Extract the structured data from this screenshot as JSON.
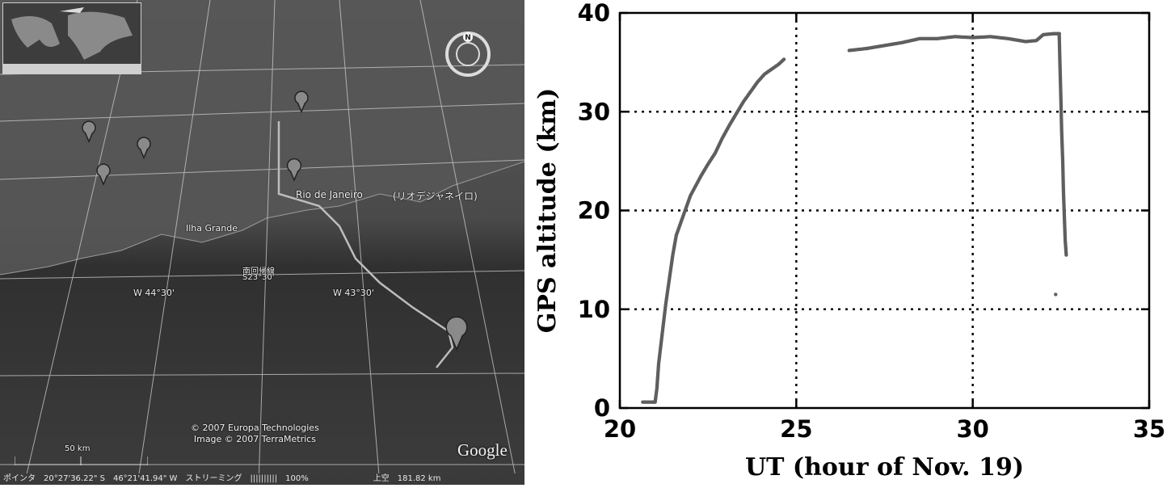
{
  "map": {
    "place_label": "Rio de Janeiro",
    "place_label_jp": "(リオデジャネイロ)",
    "island_label": "Ilha Grande",
    "tropic_label": "南回帰線",
    "lat_label": "S23°30'",
    "lon_label_1": "W 44°30'",
    "lon_label_2": "W 43°30'",
    "copyright_1": "© 2007 Europa Technologies",
    "copyright_2": "Image © 2007 TerraMetrics",
    "scale_label": "50 km",
    "logo_text": "Google",
    "compass_north": "N",
    "colors": {
      "grid": "#d0d0d0",
      "track": "#bdbdbd",
      "pin": "#8a8a8a",
      "ocean": "#2a2a2a",
      "land": "#4a4a4a"
    },
    "status_bar": {
      "mode": "ポインタ",
      "lat": "20°27'36.22\" S",
      "lon": "46°21'41.94\" W",
      "streaming_label": "ストリーミング",
      "streaming_meter": "||||||||||",
      "streaming_pct": "100%",
      "view_label": "上空",
      "altitude": "181.82 km"
    }
  },
  "chart_data": {
    "type": "scatter",
    "title": "",
    "xlabel": "UT (hour of Nov. 19)",
    "ylabel": "GPS altitude (km)",
    "xlim": [
      20,
      35
    ],
    "ylim": [
      0,
      40
    ],
    "xticks": [
      "20",
      "25",
      "30",
      "35"
    ],
    "yticks": [
      "0",
      "10",
      "20",
      "30",
      "40"
    ],
    "grid": true,
    "series_color": "#5f5f5f",
    "series": [
      {
        "x": [
          20.65,
          20.9,
          21.0,
          21.05,
          21.1,
          21.2,
          21.3,
          21.4,
          21.5,
          21.6,
          21.7,
          21.8,
          21.9,
          22.0,
          22.15,
          22.3,
          22.5,
          22.7,
          22.9,
          23.1,
          23.3,
          23.5,
          23.7,
          23.9,
          24.1,
          24.3,
          24.5,
          24.65
        ],
        "y": [
          0.6,
          0.6,
          0.6,
          2.0,
          4.5,
          7.5,
          10.5,
          13.0,
          15.5,
          17.5,
          18.5,
          19.5,
          20.5,
          21.5,
          22.5,
          23.5,
          24.7,
          25.8,
          27.3,
          28.6,
          29.8,
          31.0,
          32.0,
          33.0,
          33.8,
          34.3,
          34.8,
          35.3
        ]
      },
      {
        "x": [
          26.5,
          27.0,
          27.5,
          28.0,
          28.5,
          29.0,
          29.5,
          30.0,
          30.5,
          31.0,
          31.5,
          31.8,
          32.0,
          32.3,
          32.45
        ],
        "y": [
          36.2,
          36.4,
          36.7,
          37.0,
          37.4,
          37.4,
          37.6,
          37.5,
          37.6,
          37.4,
          37.1,
          37.2,
          37.8,
          37.9,
          37.9
        ]
      },
      {
        "x": [
          32.45,
          32.47,
          32.5,
          32.52,
          32.55,
          32.57,
          32.6,
          32.62,
          32.65
        ],
        "y": [
          37.9,
          35.0,
          31.0,
          28.0,
          25.0,
          22.0,
          19.0,
          17.0,
          15.5
        ]
      },
      {
        "x": [
          32.35
        ],
        "y": [
          11.5
        ]
      }
    ]
  }
}
